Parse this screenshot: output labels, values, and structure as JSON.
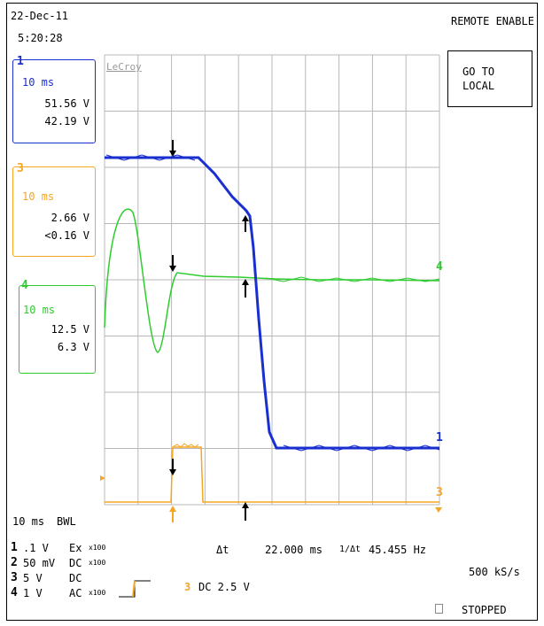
{
  "header": {
    "date": "22-Dec-11",
    "time": "5:20:28",
    "remote": "REMOTE ENABLE"
  },
  "button": {
    "line1": "GO TO",
    "line2": "LOCAL"
  },
  "brand": "LeCroy",
  "channels": [
    {
      "num": "1",
      "timebase": "10 ms",
      "v1": "51.56 V",
      "v2": "42.19 V",
      "color": "#1a2fd0"
    },
    {
      "num": "3",
      "timebase": "10 ms",
      "v1": "2.66 V",
      "v2": "<0.16 V",
      "color": "#f5a623"
    },
    {
      "num": "4",
      "timebase": "10 ms",
      "v1": "12.5 V",
      "v2": "6.3 V",
      "color": "#2ecc2e"
    }
  ],
  "status": {
    "timebase": "10 ms",
    "bwl": "BWL",
    "delta_t_label": "Δt",
    "delta_t": "22.000 ms",
    "inv_label": "1/Δt",
    "freq": "45.455 Hz",
    "sample_rate": "500 kS/s",
    "state": "STOPPED"
  },
  "settings": [
    {
      "ch": "1",
      "scale": ".1  V",
      "cpl": "Ex",
      "probe": "x100"
    },
    {
      "ch": "2",
      "scale": "50 mV",
      "cpl": "DC",
      "probe": "x100"
    },
    {
      "ch": "3",
      "scale": "5  V",
      "cpl": "DC",
      "probe": ""
    },
    {
      "ch": "4",
      "scale": "1  V",
      "cpl": "AC",
      "probe": "x100"
    }
  ],
  "trigger": {
    "ch": "3",
    "text": "DC 2.5 V"
  },
  "trace_markers": {
    "ch1": "1",
    "ch3": "3",
    "ch4": "4"
  },
  "colors": {
    "ch1": "#1a2fd0",
    "ch3": "#f5a623",
    "ch4": "#2ecc2e",
    "grid": "#b8b8b8"
  }
}
